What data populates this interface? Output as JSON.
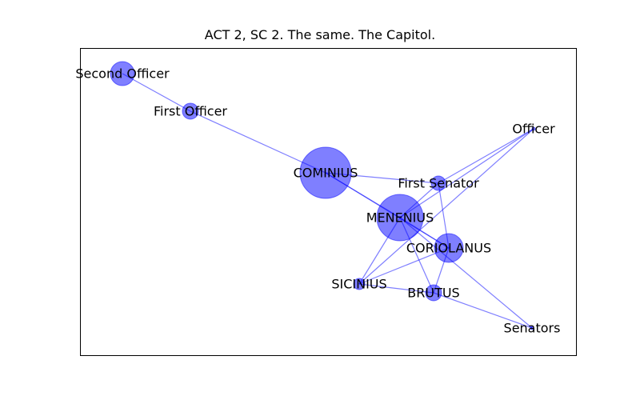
{
  "title": "ACT 2, SC 2. The same. The Capitol.",
  "colors": {
    "node": "#0000ff",
    "edge": "#0000ff",
    "frame": "#000000"
  },
  "nodes": [
    {
      "id": "second-officer",
      "label": "Second Officer"
    },
    {
      "id": "first-officer",
      "label": "First Officer"
    },
    {
      "id": "officer",
      "label": "Officer"
    },
    {
      "id": "cominius",
      "label": "COMINIUS"
    },
    {
      "id": "first-senator",
      "label": "First Senator"
    },
    {
      "id": "menenius",
      "label": "MENENIUS"
    },
    {
      "id": "coriolanus",
      "label": "CORIOLANUS"
    },
    {
      "id": "sicinius",
      "label": "SICINIUS"
    },
    {
      "id": "brutus",
      "label": "BRUTUS"
    },
    {
      "id": "senators",
      "label": "Senators"
    }
  ],
  "edges": [
    [
      "second-officer",
      "first-officer"
    ],
    [
      "first-officer",
      "cominius"
    ],
    [
      "cominius",
      "menenius"
    ],
    [
      "cominius",
      "first-senator"
    ],
    [
      "cominius",
      "coriolanus"
    ],
    [
      "officer",
      "first-senator"
    ],
    [
      "officer",
      "menenius"
    ],
    [
      "officer",
      "sicinius"
    ],
    [
      "first-senator",
      "menenius"
    ],
    [
      "first-senator",
      "coriolanus"
    ],
    [
      "menenius",
      "coriolanus"
    ],
    [
      "menenius",
      "sicinius"
    ],
    [
      "menenius",
      "brutus"
    ],
    [
      "menenius",
      "senators"
    ],
    [
      "coriolanus",
      "sicinius"
    ],
    [
      "coriolanus",
      "brutus"
    ],
    [
      "sicinius",
      "brutus"
    ],
    [
      "brutus",
      "senators"
    ]
  ]
}
